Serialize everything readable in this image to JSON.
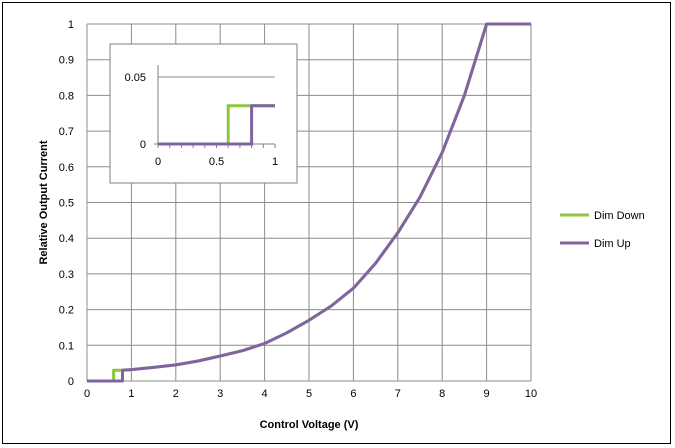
{
  "chart_data": [
    {
      "type": "line",
      "title": "",
      "xlabel": "Control Voltage (V)",
      "ylabel": "Relative Output Current",
      "xlim": [
        0,
        10
      ],
      "ylim": [
        0,
        1
      ],
      "xticks": [
        "0",
        "1",
        "2",
        "3",
        "4",
        "5",
        "6",
        "7",
        "8",
        "9",
        "10"
      ],
      "yticks": [
        "0",
        "0.1",
        "0.2",
        "0.3",
        "0.4",
        "0.5",
        "0.6",
        "0.7",
        "0.8",
        "0.9",
        "1"
      ],
      "grid": true,
      "legend_position": "right",
      "series": [
        {
          "name": "Dim Down",
          "color": "#8dc63f",
          "x": [
            0,
            0.6,
            0.6,
            0.75,
            1.0,
            1.5,
            2.0,
            2.5,
            3.0,
            3.5,
            4.0,
            4.5,
            5.0,
            5.5,
            6.0,
            6.5,
            7.0,
            7.5,
            8.0,
            8.5,
            9.0,
            10.0
          ],
          "y": [
            0,
            0,
            0.03,
            0.03,
            0.032,
            0.038,
            0.045,
            0.056,
            0.07,
            0.085,
            0.105,
            0.135,
            0.17,
            0.21,
            0.26,
            0.33,
            0.415,
            0.515,
            0.64,
            0.8,
            1.0,
            1.0
          ]
        },
        {
          "name": "Dim Up",
          "color": "#8064a2",
          "x": [
            0,
            0.8,
            0.8,
            1.0,
            1.5,
            2.0,
            2.5,
            3.0,
            3.5,
            4.0,
            4.5,
            5.0,
            5.5,
            6.0,
            6.5,
            7.0,
            7.5,
            8.0,
            8.5,
            9.0,
            10.0
          ],
          "y": [
            0,
            0,
            0.03,
            0.032,
            0.038,
            0.045,
            0.056,
            0.07,
            0.085,
            0.105,
            0.135,
            0.17,
            0.21,
            0.26,
            0.33,
            0.415,
            0.515,
            0.64,
            0.8,
            1.0,
            1.0
          ]
        }
      ]
    },
    {
      "type": "line",
      "title": "",
      "xlabel": "",
      "ylabel": "",
      "xlim": [
        0,
        1
      ],
      "ylim": [
        0,
        0.05
      ],
      "xticks": [
        "0",
        "0.5",
        "1"
      ],
      "yticks": [
        "0",
        "0.05"
      ],
      "grid": true,
      "legend_position": "none",
      "series": [
        {
          "name": "Dim Down",
          "color": "#8dc63f",
          "x": [
            0,
            0.6,
            0.6,
            1.0
          ],
          "y": [
            0,
            0,
            0.0285,
            0.0285
          ]
        },
        {
          "name": "Dim Up",
          "color": "#8064a2",
          "x": [
            0,
            0.8,
            0.8,
            1.0
          ],
          "y": [
            0,
            0,
            0.0285,
            0.0285
          ]
        }
      ]
    }
  ]
}
